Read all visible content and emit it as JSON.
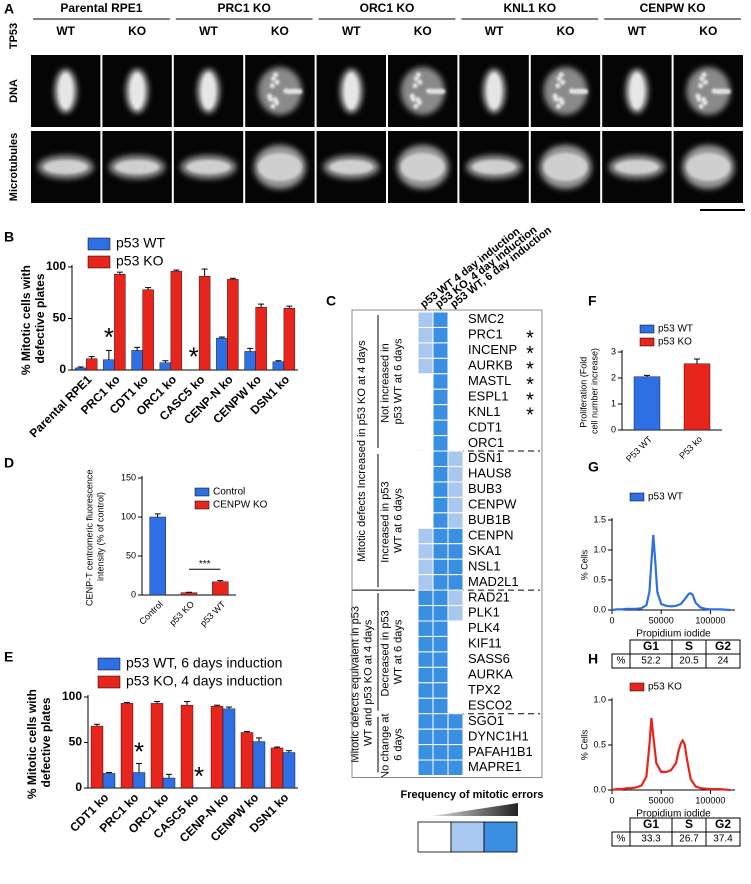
{
  "panel_a": {
    "label": "A",
    "side_label": "TP53",
    "rows": [
      "DNA",
      "Microtubules"
    ],
    "groups": [
      {
        "title": "Parental RPE1",
        "columns": [
          {
            "text": "WT",
            "color": "#2f6fe4"
          },
          {
            "text": "KO",
            "color": "#e8251d"
          }
        ]
      },
      {
        "title": "PRC1 KO",
        "columns": [
          {
            "text": "WT",
            "color": "#2f6fe4"
          },
          {
            "text": "KO",
            "color": "#e8251d"
          }
        ]
      },
      {
        "title": "ORC1 KO",
        "columns": [
          {
            "text": "WT",
            "color": "#2f6fe4"
          },
          {
            "text": "KO",
            "color": "#e8251d"
          }
        ]
      },
      {
        "title": "KNL1 KO",
        "columns": [
          {
            "text": "WT",
            "color": "#2f6fe4"
          },
          {
            "text": "KO",
            "color": "#e8251d"
          }
        ]
      },
      {
        "title": "CENPW KO",
        "columns": [
          {
            "text": "WT",
            "color": "#2f6fe4"
          },
          {
            "text": "KO",
            "color": "#e8251d"
          }
        ]
      }
    ]
  },
  "panel_c": {
    "label": "C",
    "columns": [
      {
        "text": "p53 WT 4 day induction",
        "color": "#2f6fe4"
      },
      {
        "text": "p53 KO, 4 day induction",
        "color": "#e8251d"
      },
      {
        "text": "p53 WT, 6 day induction",
        "color": "#2f6fe4"
      }
    ],
    "level_colors": [
      "#ffffff",
      "#a8c8f0",
      "#3b8fe3"
    ],
    "legend_title": "Frequency of mitotic errors",
    "groups": [
      {
        "text": "Mitotic defects Increased in p53 KO at 4 days",
        "subgroups": [
          {
            "text": "Not increased in p53 WT at 6 days",
            "rows": [
              {
                "gene": "SMC2",
                "levels": [
                  1,
                  2,
                  0
                ]
              },
              {
                "gene": "PRC1",
                "levels": [
                  1,
                  2,
                  0
                ],
                "mark": "*"
              },
              {
                "gene": "INCENP",
                "levels": [
                  1,
                  2,
                  0
                ],
                "mark": "*"
              },
              {
                "gene": "AURKB",
                "levels": [
                  1,
                  2,
                  0
                ],
                "mark": "*"
              },
              {
                "gene": "MASTL",
                "levels": [
                  0,
                  2,
                  0
                ],
                "mark": "*"
              },
              {
                "gene": "ESPL1",
                "levels": [
                  0,
                  2,
                  0
                ],
                "mark": "*"
              },
              {
                "gene": "KNL1",
                "levels": [
                  0,
                  2,
                  0
                ],
                "mark": "*"
              },
              {
                "gene": "CDT1",
                "levels": [
                  0,
                  2,
                  0
                ]
              },
              {
                "gene": "ORC1",
                "levels": [
                  0,
                  2,
                  0
                ]
              }
            ]
          },
          {
            "text": "Increased in p53 WT at 6 days",
            "rows": [
              {
                "gene": "DSN1",
                "levels": [
                  0,
                  2,
                  1
                ]
              },
              {
                "gene": "HAUS8",
                "levels": [
                  0,
                  2,
                  1
                ]
              },
              {
                "gene": "BUB3",
                "levels": [
                  0,
                  2,
                  1
                ]
              },
              {
                "gene": "CENPW",
                "levels": [
                  0,
                  2,
                  1
                ]
              },
              {
                "gene": "BUB1B",
                "levels": [
                  0,
                  2,
                  1
                ]
              },
              {
                "gene": "CENPN",
                "levels": [
                  1,
                  2,
                  2
                ]
              },
              {
                "gene": "SKA1",
                "levels": [
                  1,
                  2,
                  2
                ]
              },
              {
                "gene": "NSL1",
                "levels": [
                  1,
                  2,
                  2
                ]
              },
              {
                "gene": "MAD2L1",
                "levels": [
                  1,
                  2,
                  2
                ]
              }
            ]
          }
        ]
      },
      {
        "text": "Mitotic defects equivalent in p53 WT and p53 KO at 4 days",
        "subgroups": [
          {
            "text": "Decreased in p53 WT at 6 days",
            "rows": [
              {
                "gene": "RAD21",
                "levels": [
                  2,
                  2,
                  1
                ]
              },
              {
                "gene": "PLK1",
                "levels": [
                  2,
                  2,
                  1
                ]
              },
              {
                "gene": "PLK4",
                "levels": [
                  2,
                  2,
                  0
                ]
              },
              {
                "gene": "KIF11",
                "levels": [
                  2,
                  2,
                  0
                ]
              },
              {
                "gene": "SASS6",
                "levels": [
                  2,
                  2,
                  0
                ]
              },
              {
                "gene": "AURKA",
                "levels": [
                  2,
                  2,
                  0
                ]
              },
              {
                "gene": "TPX2",
                "levels": [
                  2,
                  2,
                  0
                ]
              },
              {
                "gene": "ESCO2",
                "levels": [
                  2,
                  2,
                  0
                ]
              }
            ]
          },
          {
            "text": "No change at 6 days",
            "rows": [
              {
                "gene": "SGO1",
                "levels": [
                  2,
                  2,
                  2
                ]
              },
              {
                "gene": "DYNC1H1",
                "levels": [
                  2,
                  2,
                  2
                ]
              },
              {
                "gene": "PAFAH1B1",
                "levels": [
                  2,
                  2,
                  2
                ]
              },
              {
                "gene": "MAPRE1",
                "levels": [
                  2,
                  2,
                  2
                ]
              }
            ]
          }
        ]
      }
    ]
  },
  "chart_data": [
    {
      "type": "bar",
      "label": "B",
      "ylabel": "% Mitotic cells with defective plates",
      "categories": [
        "Parental RPE1",
        "PRC1 ko",
        "CDT1 ko",
        "ORC1 ko",
        "CASC5 ko",
        "CENP-N ko",
        "CENPW ko",
        "DSN1 ko"
      ],
      "series": [
        {
          "name": "p53 WT",
          "color": "#2f6fe4",
          "values": [
            2,
            10,
            19,
            7,
            null,
            31,
            18,
            8
          ],
          "errors": [
            1,
            9,
            3,
            2,
            null,
            1,
            3,
            1
          ],
          "asterisks": [
            null,
            "*",
            null,
            null,
            "*",
            null,
            null,
            null
          ]
        },
        {
          "name": "p53 KO",
          "color": "#e8251d",
          "values": [
            11,
            93,
            78,
            96,
            91,
            88,
            61,
            60
          ],
          "errors": [
            2,
            2,
            2,
            1,
            7,
            1,
            3,
            2
          ]
        }
      ],
      "ylim": [
        0,
        100
      ],
      "yticks": [
        0,
        50,
        100
      ]
    },
    {
      "type": "bar",
      "label": "D",
      "ylabel": "CENP-T centromeric fluorescence intensity (% of control)",
      "categories": [
        "Control",
        "p53 KO",
        "p53 WT"
      ],
      "series": [
        {
          "name": "Control",
          "color": "#2f6fe4",
          "values": [
            100,
            null,
            null
          ],
          "errors": [
            4,
            null,
            null
          ]
        },
        {
          "name": "CENPW KO",
          "color": "#e8251d",
          "values": [
            null,
            3,
            17
          ],
          "errors": [
            null,
            0.5,
            1.5
          ]
        }
      ],
      "annotation": "***",
      "ylim": [
        0,
        150
      ],
      "yticks": [
        0,
        50,
        100,
        150
      ]
    },
    {
      "type": "bar",
      "label": "E",
      "ylabel": "% Mitotic cells with defective plates",
      "categories": [
        "CDT1 ko",
        "PRC1 ko",
        "ORC1 ko",
        "CASC5 ko",
        "CENP-N ko",
        "CENPW ko",
        "DSN1 ko"
      ],
      "series": [
        {
          "name": "p53 WT, 6 days induction",
          "color": "#2f6fe4",
          "values": [
            16,
            17,
            11,
            null,
            87,
            51,
            39
          ],
          "errors": [
            1,
            10,
            4,
            null,
            2,
            4,
            2
          ],
          "asterisks": [
            null,
            "*",
            null,
            "*",
            null,
            null,
            null
          ]
        },
        {
          "name": "p53 KO, 4 days induction",
          "color": "#e8251d",
          "values": [
            68,
            93,
            93,
            91,
            90,
            61,
            44
          ],
          "errors": [
            2,
            1,
            2,
            4,
            1,
            1,
            1
          ]
        }
      ],
      "ylim": [
        0,
        100
      ],
      "yticks": [
        0,
        50,
        100
      ]
    },
    {
      "type": "bar",
      "label": "F",
      "ylabel": "Proliferation (Fold cell number increase)",
      "categories": [
        "P53 WT",
        "P53 ko"
      ],
      "series": [
        {
          "name": "p53 WT",
          "color": "#2f6fe4",
          "values": [
            2.05,
            null
          ],
          "errors": [
            0.05,
            null
          ]
        },
        {
          "name": "p53 KO",
          "color": "#e8251d",
          "values": [
            null,
            2.55
          ],
          "errors": [
            null,
            0.18
          ]
        }
      ],
      "ylim": [
        0,
        3
      ],
      "yticks": [
        0,
        1,
        2,
        3
      ]
    },
    {
      "type": "line",
      "label": "G",
      "xlabel": "Propidium iodide",
      "ylabel": "% Cells",
      "x": [
        0,
        5000,
        10000,
        15000,
        20000,
        25000,
        30000,
        35000,
        38000,
        40000,
        42000,
        44000,
        46000,
        50000,
        55000,
        60000,
        65000,
        70000,
        74000,
        78000,
        80000,
        82000,
        85000,
        90000,
        95000,
        100000,
        110000,
        120000
      ],
      "series": [
        {
          "name": "p53 WT",
          "color": "#2f6fe4",
          "values": [
            0,
            0.01,
            0.01,
            0.02,
            0.02,
            0.02,
            0.03,
            0.08,
            0.3,
            0.8,
            1.25,
            0.8,
            0.3,
            0.1,
            0.07,
            0.06,
            0.07,
            0.1,
            0.18,
            0.27,
            0.28,
            0.25,
            0.12,
            0.04,
            0.02,
            0.01,
            0.01,
            0
          ]
        }
      ],
      "xlim": [
        0,
        125000
      ],
      "xticks": [
        0,
        50000,
        100000
      ],
      "ylim": [
        0,
        1.5
      ],
      "yticks": [
        {
          "value": 0,
          "label": "0.0"
        },
        0.5,
        {
          "value": 1,
          "label": "1.0"
        },
        1.5
      ],
      "table": {
        "header": [
          "G1",
          "S",
          "G2"
        ],
        "row_label": "%",
        "values": [
          52.2,
          20.5,
          24
        ]
      }
    },
    {
      "type": "line",
      "label": "H",
      "xlabel": "Propidium iodide",
      "ylabel": "% Cells",
      "x": [
        0,
        5000,
        10000,
        15000,
        20000,
        25000,
        30000,
        35000,
        38000,
        40000,
        42000,
        45000,
        50000,
        55000,
        60000,
        65000,
        68000,
        70000,
        72000,
        74000,
        76000,
        80000,
        85000,
        90000,
        100000,
        110000,
        120000
      ],
      "series": [
        {
          "name": "p53 KO",
          "color": "#e8251d",
          "values": [
            0,
            0.01,
            0.01,
            0.02,
            0.02,
            0.03,
            0.05,
            0.15,
            0.5,
            0.8,
            0.6,
            0.3,
            0.2,
            0.2,
            0.22,
            0.3,
            0.45,
            0.52,
            0.55,
            0.5,
            0.35,
            0.12,
            0.04,
            0.02,
            0.01,
            0.01,
            0
          ]
        }
      ],
      "xlim": [
        0,
        125000
      ],
      "xticks": [
        0,
        50000,
        100000
      ],
      "ylim": [
        0,
        1
      ],
      "yticks": [
        {
          "value": 0,
          "label": "0.0"
        },
        0.5,
        {
          "value": 1,
          "label": "1.0"
        }
      ],
      "table": {
        "header": [
          "G1",
          "S",
          "G2"
        ],
        "row_label": "%",
        "values": [
          33.3,
          26.7,
          37.4
        ]
      }
    }
  ]
}
